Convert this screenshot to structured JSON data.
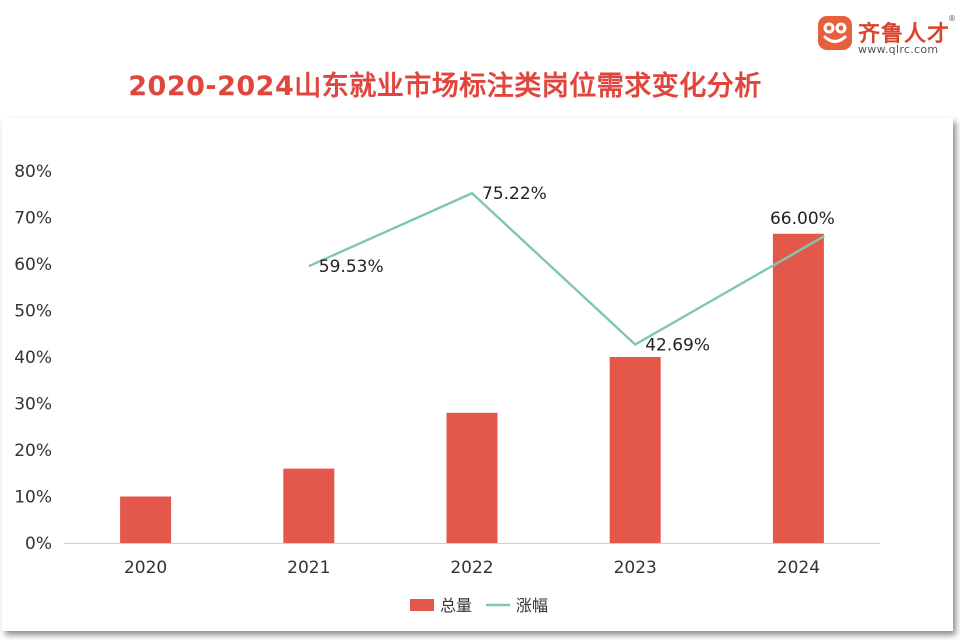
{
  "logo": {
    "brand": "齐鲁人才",
    "url": "www.qlrc.com",
    "reg": "®",
    "icon": "frog-face-icon",
    "color": "#e8603b"
  },
  "colors": {
    "bar": "#e4574b",
    "line": "#7ec8b0",
    "title": "#e0463d"
  },
  "chart_data": {
    "type": "bar",
    "title": "2020-2024山东就业市场标注类岗位需求变化分析",
    "categories": [
      "2020",
      "2021",
      "2022",
      "2023",
      "2024"
    ],
    "ylim": [
      0,
      80
    ],
    "yticks": [
      "0%",
      "10%",
      "20%",
      "30%",
      "40%",
      "50%",
      "60%",
      "70%",
      "80%"
    ],
    "grid": false,
    "legend_position": "bottom-center",
    "series": [
      {
        "name": "总量",
        "type": "bar",
        "values": [
          10,
          16,
          28,
          40,
          66.5
        ]
      },
      {
        "name": "涨幅",
        "type": "line",
        "values": [
          null,
          59.53,
          75.22,
          42.69,
          66.0
        ],
        "labels": [
          "",
          "59.53%",
          "75.22%",
          "42.69%",
          "66.00%"
        ]
      }
    ]
  }
}
